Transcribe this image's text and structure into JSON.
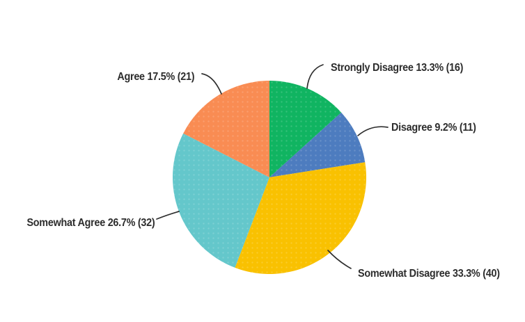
{
  "page": {
    "background_color": "#ffffff",
    "text_color": "#2d2d2d",
    "leader_line_color": "#2f2f2f"
  },
  "chart_data": {
    "type": "pie",
    "title": "",
    "start_angle": "top",
    "direction": "clockwise",
    "legend_position": "none",
    "labels_style": "outside-callouts",
    "categories": [
      "Strongly Disagree",
      "Disagree",
      "Somewhat Disagree",
      "Somewhat Agree",
      "Agree"
    ],
    "values": [
      13.3,
      9.2,
      33.3,
      26.7,
      17.5
    ],
    "counts": [
      16,
      11,
      40,
      32,
      21
    ],
    "slices": [
      {
        "label": "Strongly Disagree",
        "percent": 13.3,
        "count": 16,
        "display": "Strongly Disagree 13.3% (16)",
        "color": "#10b461"
      },
      {
        "label": "Disagree",
        "percent": 9.2,
        "count": 11,
        "display": "Disagree 9.2% (11)",
        "color": "#4d7cbf"
      },
      {
        "label": "Somewhat Disagree",
        "percent": 33.3,
        "count": 40,
        "display": "Somewhat Disagree 33.3% (40)",
        "color": "#f9c101"
      },
      {
        "label": "Somewhat Agree",
        "percent": 26.7,
        "count": 32,
        "display": "Somewhat Agree 26.7% (32)",
        "color": "#64c7cb"
      },
      {
        "label": "Agree",
        "percent": 17.5,
        "count": 21,
        "display": "Agree 17.5% (21)",
        "color": "#f98c53"
      }
    ]
  }
}
